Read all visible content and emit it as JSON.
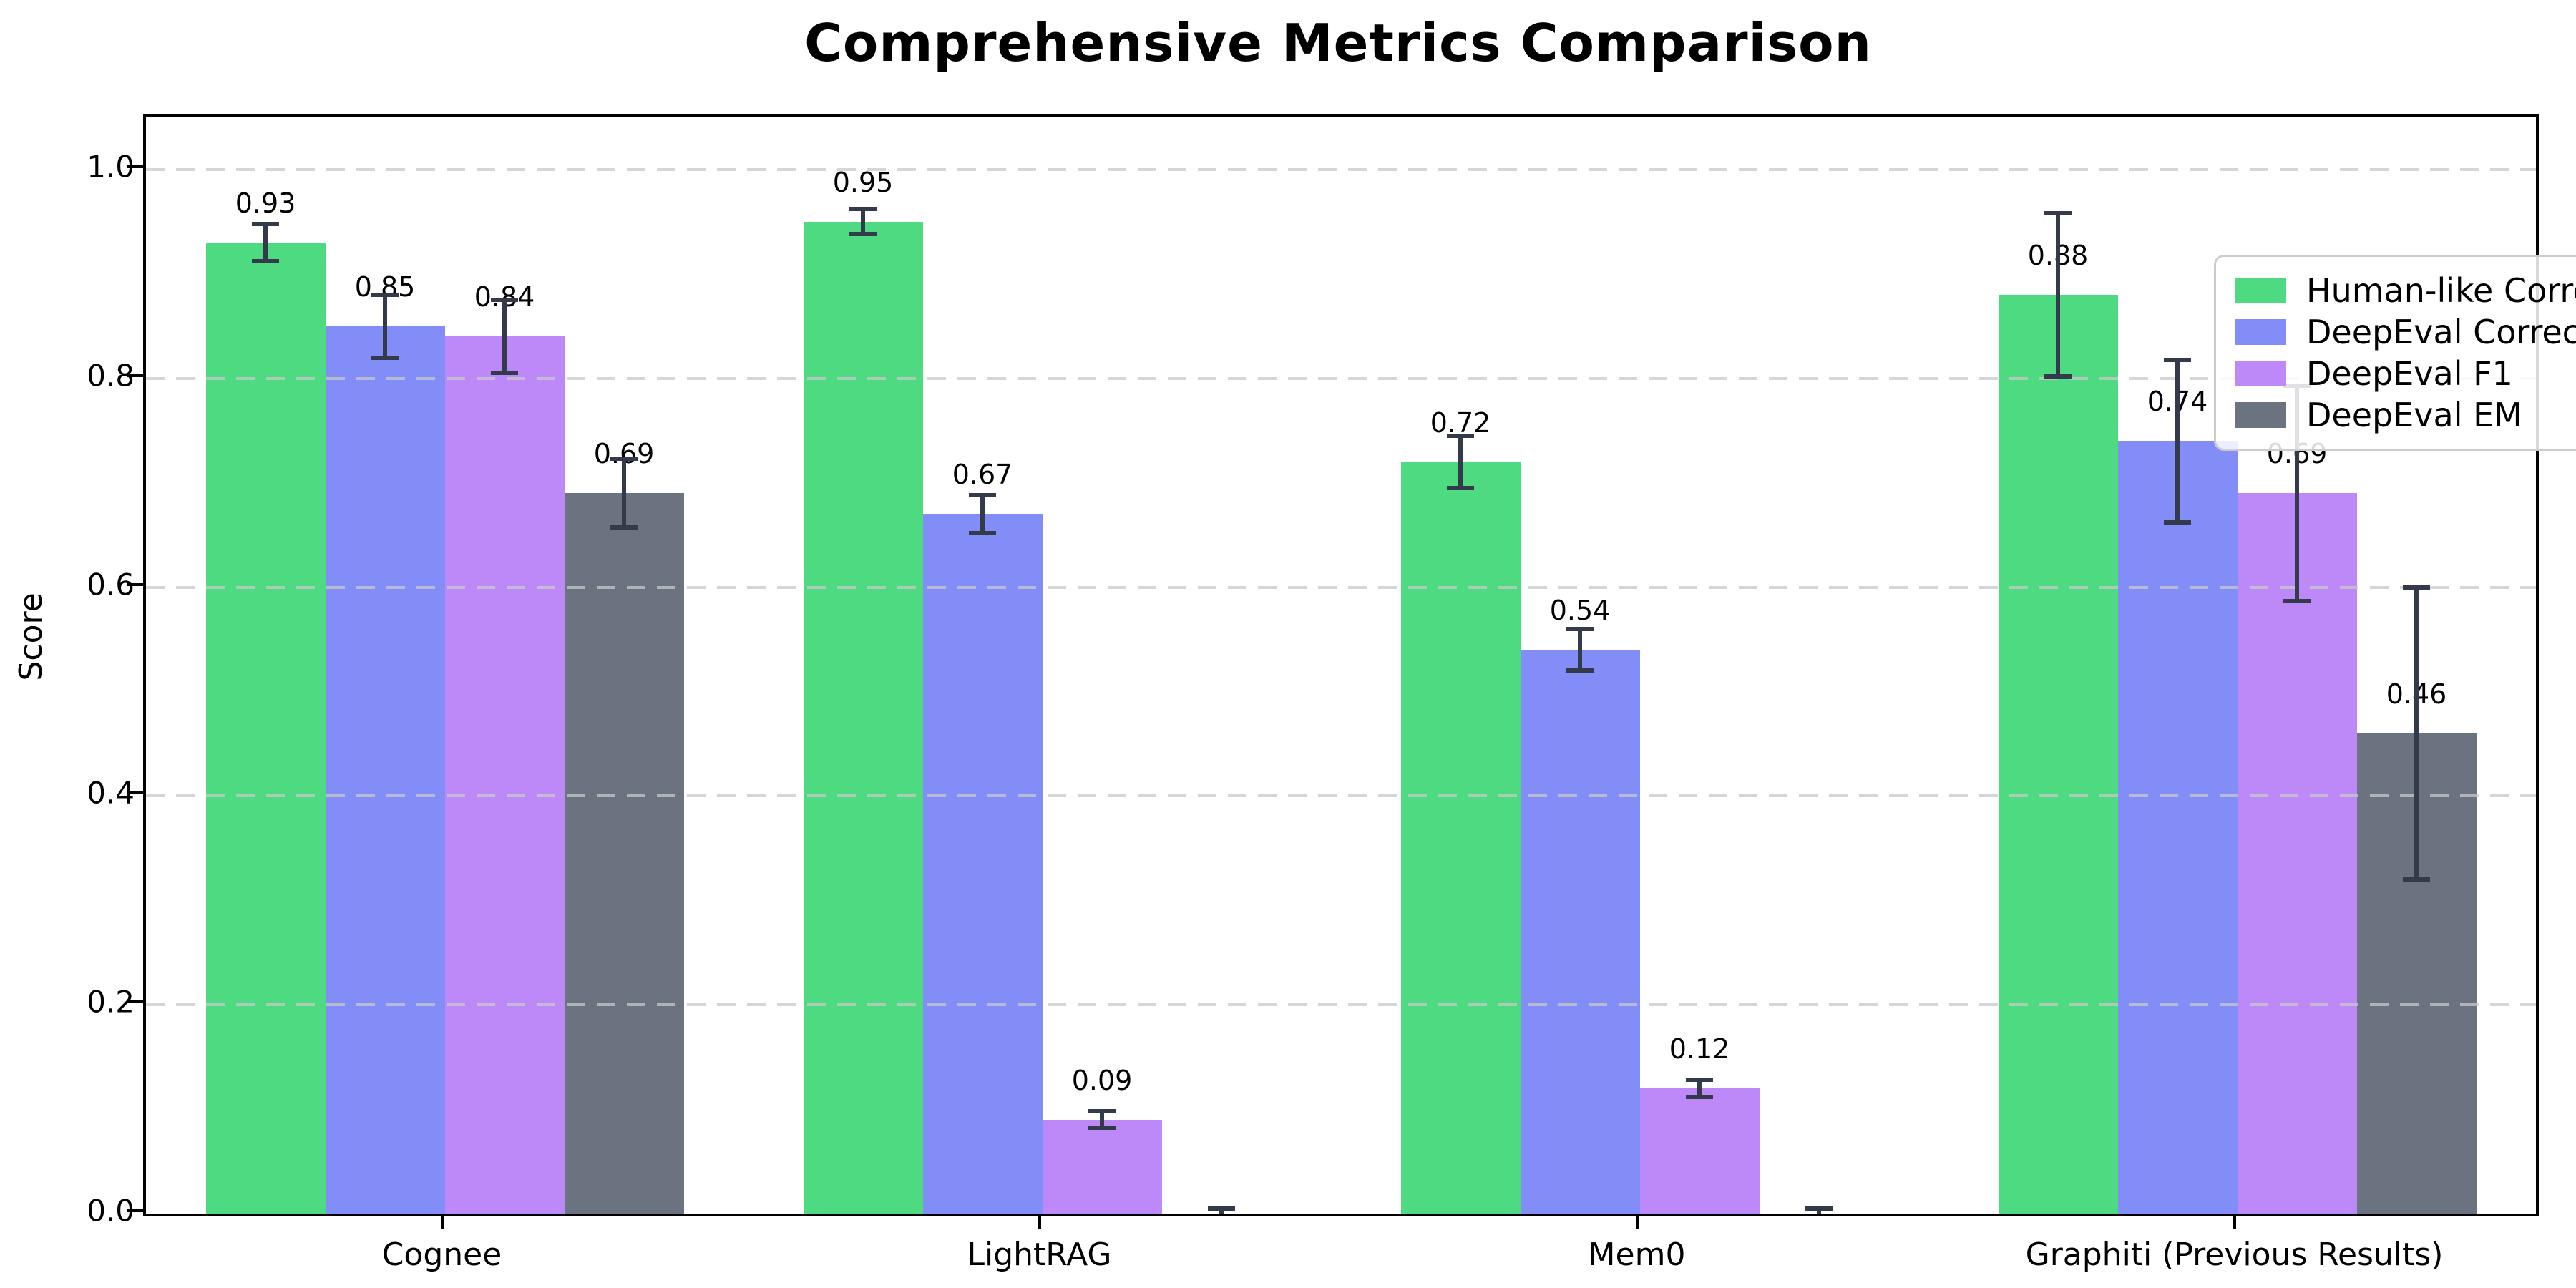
{
  "title": "Comprehensive Metrics Comparison",
  "chart_data": {
    "type": "bar",
    "title": "Comprehensive Metrics Comparison",
    "xlabel": "",
    "ylabel": "Score",
    "ylim": [
      0,
      1.05
    ],
    "ytick_labels": [
      "0.0",
      "0.2",
      "0.4",
      "0.6",
      "0.8",
      "1.0"
    ],
    "ytick_values": [
      0.0,
      0.2,
      0.4,
      0.6,
      0.8,
      1.0
    ],
    "grid": "horizontal-dashed",
    "grid_color": "#c9c9c9",
    "legend_position": "upper right",
    "error_bar_color": "#333b4b",
    "background_color": "#ffffff",
    "categories": [
      "Cognee",
      "LightRAG",
      "Mem0",
      "Graphiti (Previous Results)"
    ],
    "series": [
      {
        "name": "Human-like Correctness",
        "color": "#4dda81",
        "values": [
          0.93,
          0.95,
          0.72,
          0.88
        ],
        "errors": [
          0.018,
          0.012,
          0.025,
          0.078
        ],
        "labels": [
          "0.93",
          "0.95",
          "0.72",
          "0.88"
        ]
      },
      {
        "name": "DeepEval Correctness",
        "color": "#828df8",
        "values": [
          0.85,
          0.67,
          0.54,
          0.74
        ],
        "errors": [
          0.03,
          0.018,
          0.02,
          0.078
        ],
        "labels": [
          "0.85",
          "0.67",
          "0.54",
          "0.74"
        ]
      },
      {
        "name": "DeepEval F1",
        "color": "#bd88f8",
        "values": [
          0.84,
          0.09,
          0.12,
          0.69
        ],
        "errors": [
          0.035,
          0.008,
          0.008,
          0.103
        ],
        "labels": [
          "0.84",
          "0.09",
          "0.12",
          "0.69"
        ]
      },
      {
        "name": "DeepEval EM",
        "color": "#6b7280",
        "values": [
          0.69,
          0.0,
          0.0,
          0.46
        ],
        "errors": [
          0.033,
          0.005,
          0.005,
          0.14
        ],
        "labels": [
          "0.69",
          "",
          "",
          "0.46"
        ]
      }
    ]
  }
}
